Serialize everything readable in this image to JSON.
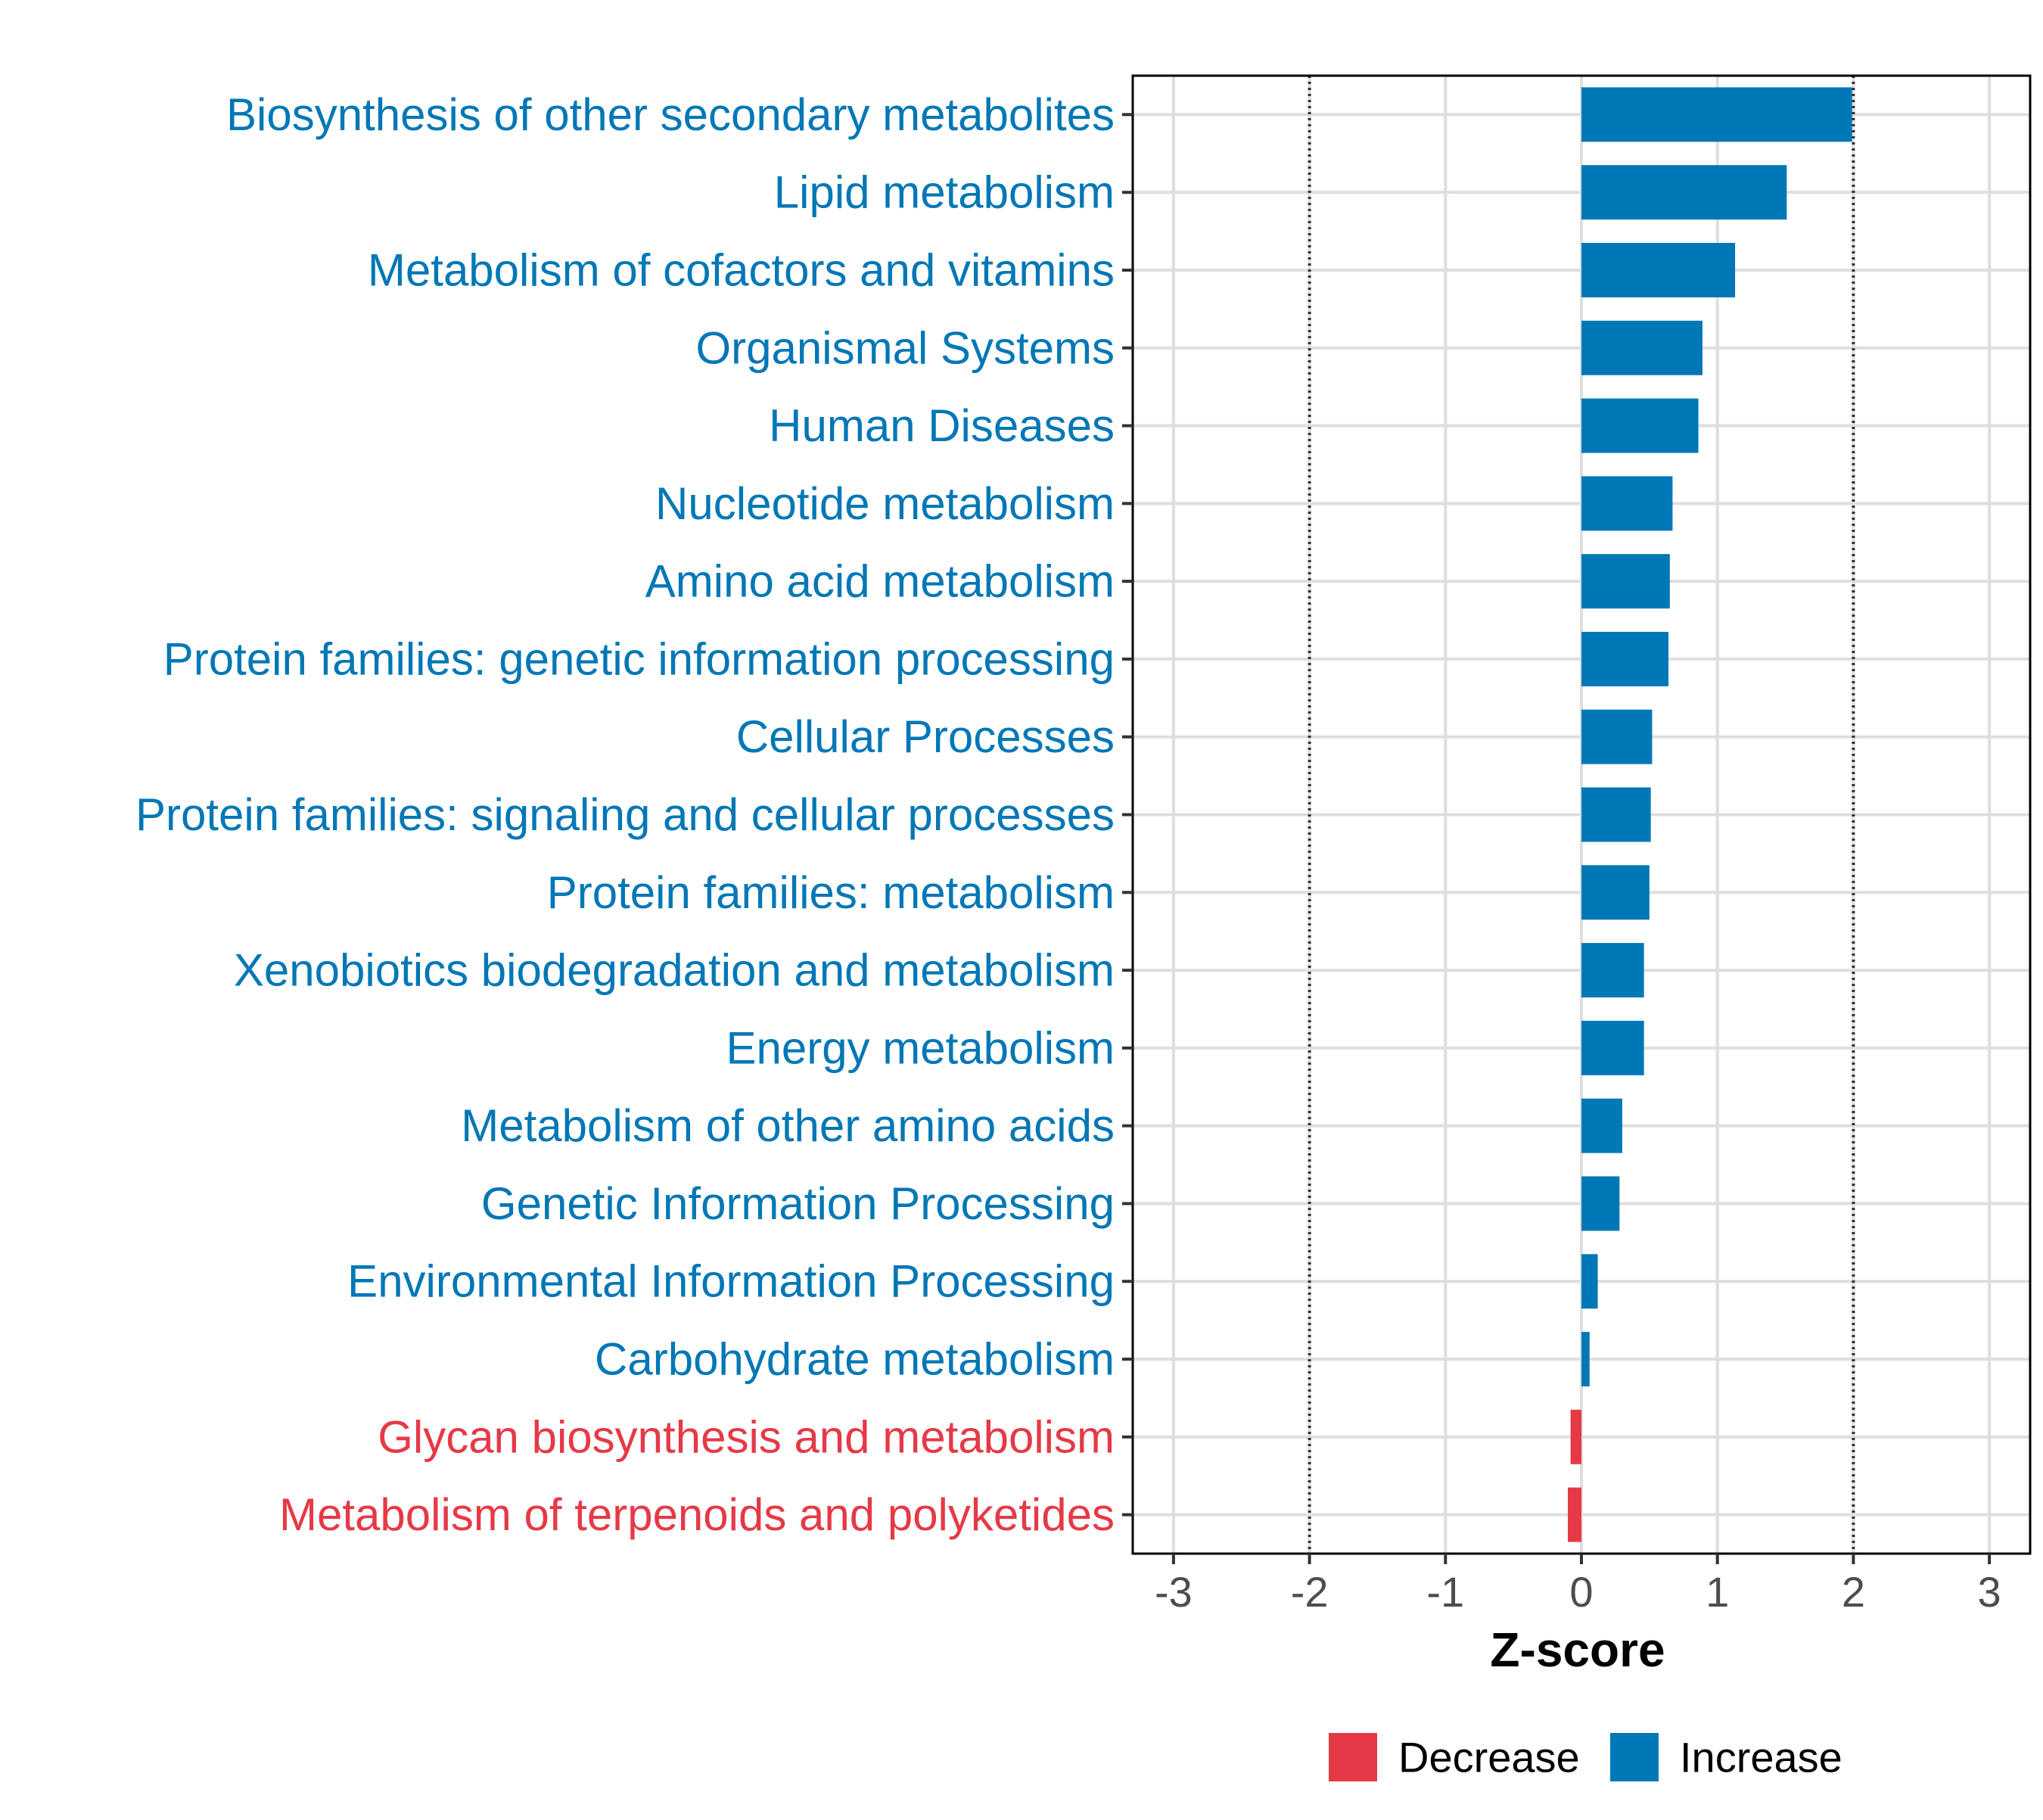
{
  "chart_data": {
    "type": "bar",
    "orientation": "horizontal",
    "title": "",
    "xlabel": "Z-score",
    "ylabel": "",
    "xlim": [
      -3.3,
      3.3
    ],
    "xticks": [
      -3,
      -2,
      -1,
      0,
      1,
      2,
      3
    ],
    "xtick_labels": [
      "-3",
      "-2",
      "-1",
      "0",
      "1",
      "2",
      "3"
    ],
    "reference_lines": [
      -2,
      2
    ],
    "grid": true,
    "legend": {
      "placement": "bottom",
      "entries": [
        {
          "name": "Decrease",
          "color": "#E63946"
        },
        {
          "name": "Increase",
          "color": "#0077B6"
        }
      ]
    },
    "categories": [
      "Biosynthesis of other secondary metabolites",
      "Lipid metabolism",
      "Metabolism of cofactors and vitamins",
      "Organismal Systems",
      "Human Diseases",
      "Nucleotide metabolism",
      "Amino acid metabolism",
      "Protein families: genetic information processing",
      "Cellular Processes",
      "Protein families: signaling and cellular processes",
      "Protein families: metabolism",
      "Xenobiotics biodegradation and metabolism",
      "Energy metabolism",
      "Metabolism of other amino acids",
      "Genetic Information Processing",
      "Environmental Information Processing",
      "Carbohydrate metabolism",
      "Glycan biosynthesis and metabolism",
      "Metabolism of terpenoids and polyketides"
    ],
    "values": [
      1.99,
      1.51,
      1.13,
      0.89,
      0.86,
      0.67,
      0.65,
      0.64,
      0.52,
      0.51,
      0.5,
      0.46,
      0.46,
      0.3,
      0.28,
      0.12,
      0.06,
      -0.08,
      -0.1
    ],
    "groups": [
      "Increase",
      "Increase",
      "Increase",
      "Increase",
      "Increase",
      "Increase",
      "Increase",
      "Increase",
      "Increase",
      "Increase",
      "Increase",
      "Increase",
      "Increase",
      "Increase",
      "Increase",
      "Increase",
      "Increase",
      "Decrease",
      "Decrease"
    ]
  }
}
